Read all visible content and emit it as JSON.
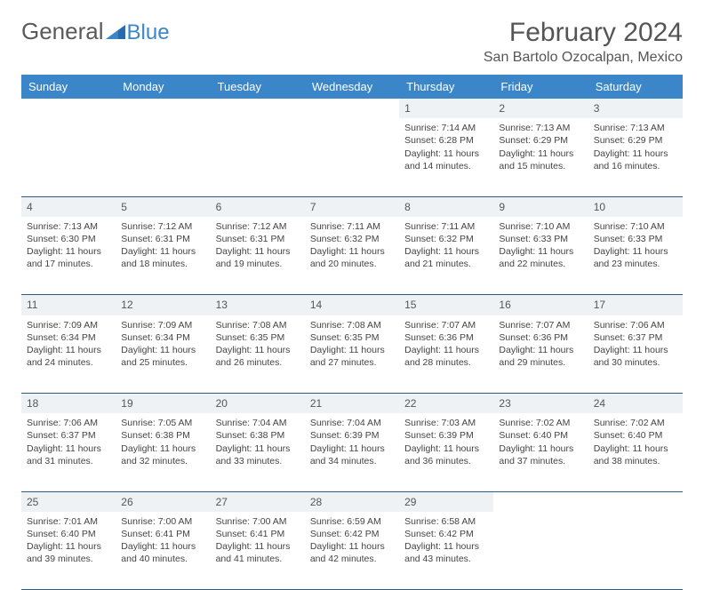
{
  "brand": {
    "part1": "General",
    "part2": "Blue"
  },
  "title": {
    "month": "February 2024",
    "location": "San Bartolo Ozocalpan, Mexico"
  },
  "colors": {
    "header_bg": "#3a86c8",
    "row_sep": "#2a5a85",
    "daynum_bg": "#eef2f5",
    "text": "#444444"
  },
  "dow": [
    "Sunday",
    "Monday",
    "Tuesday",
    "Wednesday",
    "Thursday",
    "Friday",
    "Saturday"
  ],
  "weeks": [
    {
      "nums": [
        "",
        "",
        "",
        "",
        "1",
        "2",
        "3"
      ],
      "cells": [
        null,
        null,
        null,
        null,
        {
          "sr": "Sunrise: 7:14 AM",
          "ss": "Sunset: 6:28 PM",
          "dl1": "Daylight: 11 hours",
          "dl2": "and 14 minutes."
        },
        {
          "sr": "Sunrise: 7:13 AM",
          "ss": "Sunset: 6:29 PM",
          "dl1": "Daylight: 11 hours",
          "dl2": "and 15 minutes."
        },
        {
          "sr": "Sunrise: 7:13 AM",
          "ss": "Sunset: 6:29 PM",
          "dl1": "Daylight: 11 hours",
          "dl2": "and 16 minutes."
        }
      ]
    },
    {
      "nums": [
        "4",
        "5",
        "6",
        "7",
        "8",
        "9",
        "10"
      ],
      "cells": [
        {
          "sr": "Sunrise: 7:13 AM",
          "ss": "Sunset: 6:30 PM",
          "dl1": "Daylight: 11 hours",
          "dl2": "and 17 minutes."
        },
        {
          "sr": "Sunrise: 7:12 AM",
          "ss": "Sunset: 6:31 PM",
          "dl1": "Daylight: 11 hours",
          "dl2": "and 18 minutes."
        },
        {
          "sr": "Sunrise: 7:12 AM",
          "ss": "Sunset: 6:31 PM",
          "dl1": "Daylight: 11 hours",
          "dl2": "and 19 minutes."
        },
        {
          "sr": "Sunrise: 7:11 AM",
          "ss": "Sunset: 6:32 PM",
          "dl1": "Daylight: 11 hours",
          "dl2": "and 20 minutes."
        },
        {
          "sr": "Sunrise: 7:11 AM",
          "ss": "Sunset: 6:32 PM",
          "dl1": "Daylight: 11 hours",
          "dl2": "and 21 minutes."
        },
        {
          "sr": "Sunrise: 7:10 AM",
          "ss": "Sunset: 6:33 PM",
          "dl1": "Daylight: 11 hours",
          "dl2": "and 22 minutes."
        },
        {
          "sr": "Sunrise: 7:10 AM",
          "ss": "Sunset: 6:33 PM",
          "dl1": "Daylight: 11 hours",
          "dl2": "and 23 minutes."
        }
      ]
    },
    {
      "nums": [
        "11",
        "12",
        "13",
        "14",
        "15",
        "16",
        "17"
      ],
      "cells": [
        {
          "sr": "Sunrise: 7:09 AM",
          "ss": "Sunset: 6:34 PM",
          "dl1": "Daylight: 11 hours",
          "dl2": "and 24 minutes."
        },
        {
          "sr": "Sunrise: 7:09 AM",
          "ss": "Sunset: 6:34 PM",
          "dl1": "Daylight: 11 hours",
          "dl2": "and 25 minutes."
        },
        {
          "sr": "Sunrise: 7:08 AM",
          "ss": "Sunset: 6:35 PM",
          "dl1": "Daylight: 11 hours",
          "dl2": "and 26 minutes."
        },
        {
          "sr": "Sunrise: 7:08 AM",
          "ss": "Sunset: 6:35 PM",
          "dl1": "Daylight: 11 hours",
          "dl2": "and 27 minutes."
        },
        {
          "sr": "Sunrise: 7:07 AM",
          "ss": "Sunset: 6:36 PM",
          "dl1": "Daylight: 11 hours",
          "dl2": "and 28 minutes."
        },
        {
          "sr": "Sunrise: 7:07 AM",
          "ss": "Sunset: 6:36 PM",
          "dl1": "Daylight: 11 hours",
          "dl2": "and 29 minutes."
        },
        {
          "sr": "Sunrise: 7:06 AM",
          "ss": "Sunset: 6:37 PM",
          "dl1": "Daylight: 11 hours",
          "dl2": "and 30 minutes."
        }
      ]
    },
    {
      "nums": [
        "18",
        "19",
        "20",
        "21",
        "22",
        "23",
        "24"
      ],
      "cells": [
        {
          "sr": "Sunrise: 7:06 AM",
          "ss": "Sunset: 6:37 PM",
          "dl1": "Daylight: 11 hours",
          "dl2": "and 31 minutes."
        },
        {
          "sr": "Sunrise: 7:05 AM",
          "ss": "Sunset: 6:38 PM",
          "dl1": "Daylight: 11 hours",
          "dl2": "and 32 minutes."
        },
        {
          "sr": "Sunrise: 7:04 AM",
          "ss": "Sunset: 6:38 PM",
          "dl1": "Daylight: 11 hours",
          "dl2": "and 33 minutes."
        },
        {
          "sr": "Sunrise: 7:04 AM",
          "ss": "Sunset: 6:39 PM",
          "dl1": "Daylight: 11 hours",
          "dl2": "and 34 minutes."
        },
        {
          "sr": "Sunrise: 7:03 AM",
          "ss": "Sunset: 6:39 PM",
          "dl1": "Daylight: 11 hours",
          "dl2": "and 36 minutes."
        },
        {
          "sr": "Sunrise: 7:02 AM",
          "ss": "Sunset: 6:40 PM",
          "dl1": "Daylight: 11 hours",
          "dl2": "and 37 minutes."
        },
        {
          "sr": "Sunrise: 7:02 AM",
          "ss": "Sunset: 6:40 PM",
          "dl1": "Daylight: 11 hours",
          "dl2": "and 38 minutes."
        }
      ]
    },
    {
      "nums": [
        "25",
        "26",
        "27",
        "28",
        "29",
        "",
        ""
      ],
      "cells": [
        {
          "sr": "Sunrise: 7:01 AM",
          "ss": "Sunset: 6:40 PM",
          "dl1": "Daylight: 11 hours",
          "dl2": "and 39 minutes."
        },
        {
          "sr": "Sunrise: 7:00 AM",
          "ss": "Sunset: 6:41 PM",
          "dl1": "Daylight: 11 hours",
          "dl2": "and 40 minutes."
        },
        {
          "sr": "Sunrise: 7:00 AM",
          "ss": "Sunset: 6:41 PM",
          "dl1": "Daylight: 11 hours",
          "dl2": "and 41 minutes."
        },
        {
          "sr": "Sunrise: 6:59 AM",
          "ss": "Sunset: 6:42 PM",
          "dl1": "Daylight: 11 hours",
          "dl2": "and 42 minutes."
        },
        {
          "sr": "Sunrise: 6:58 AM",
          "ss": "Sunset: 6:42 PM",
          "dl1": "Daylight: 11 hours",
          "dl2": "and 43 minutes."
        },
        null,
        null
      ]
    }
  ]
}
